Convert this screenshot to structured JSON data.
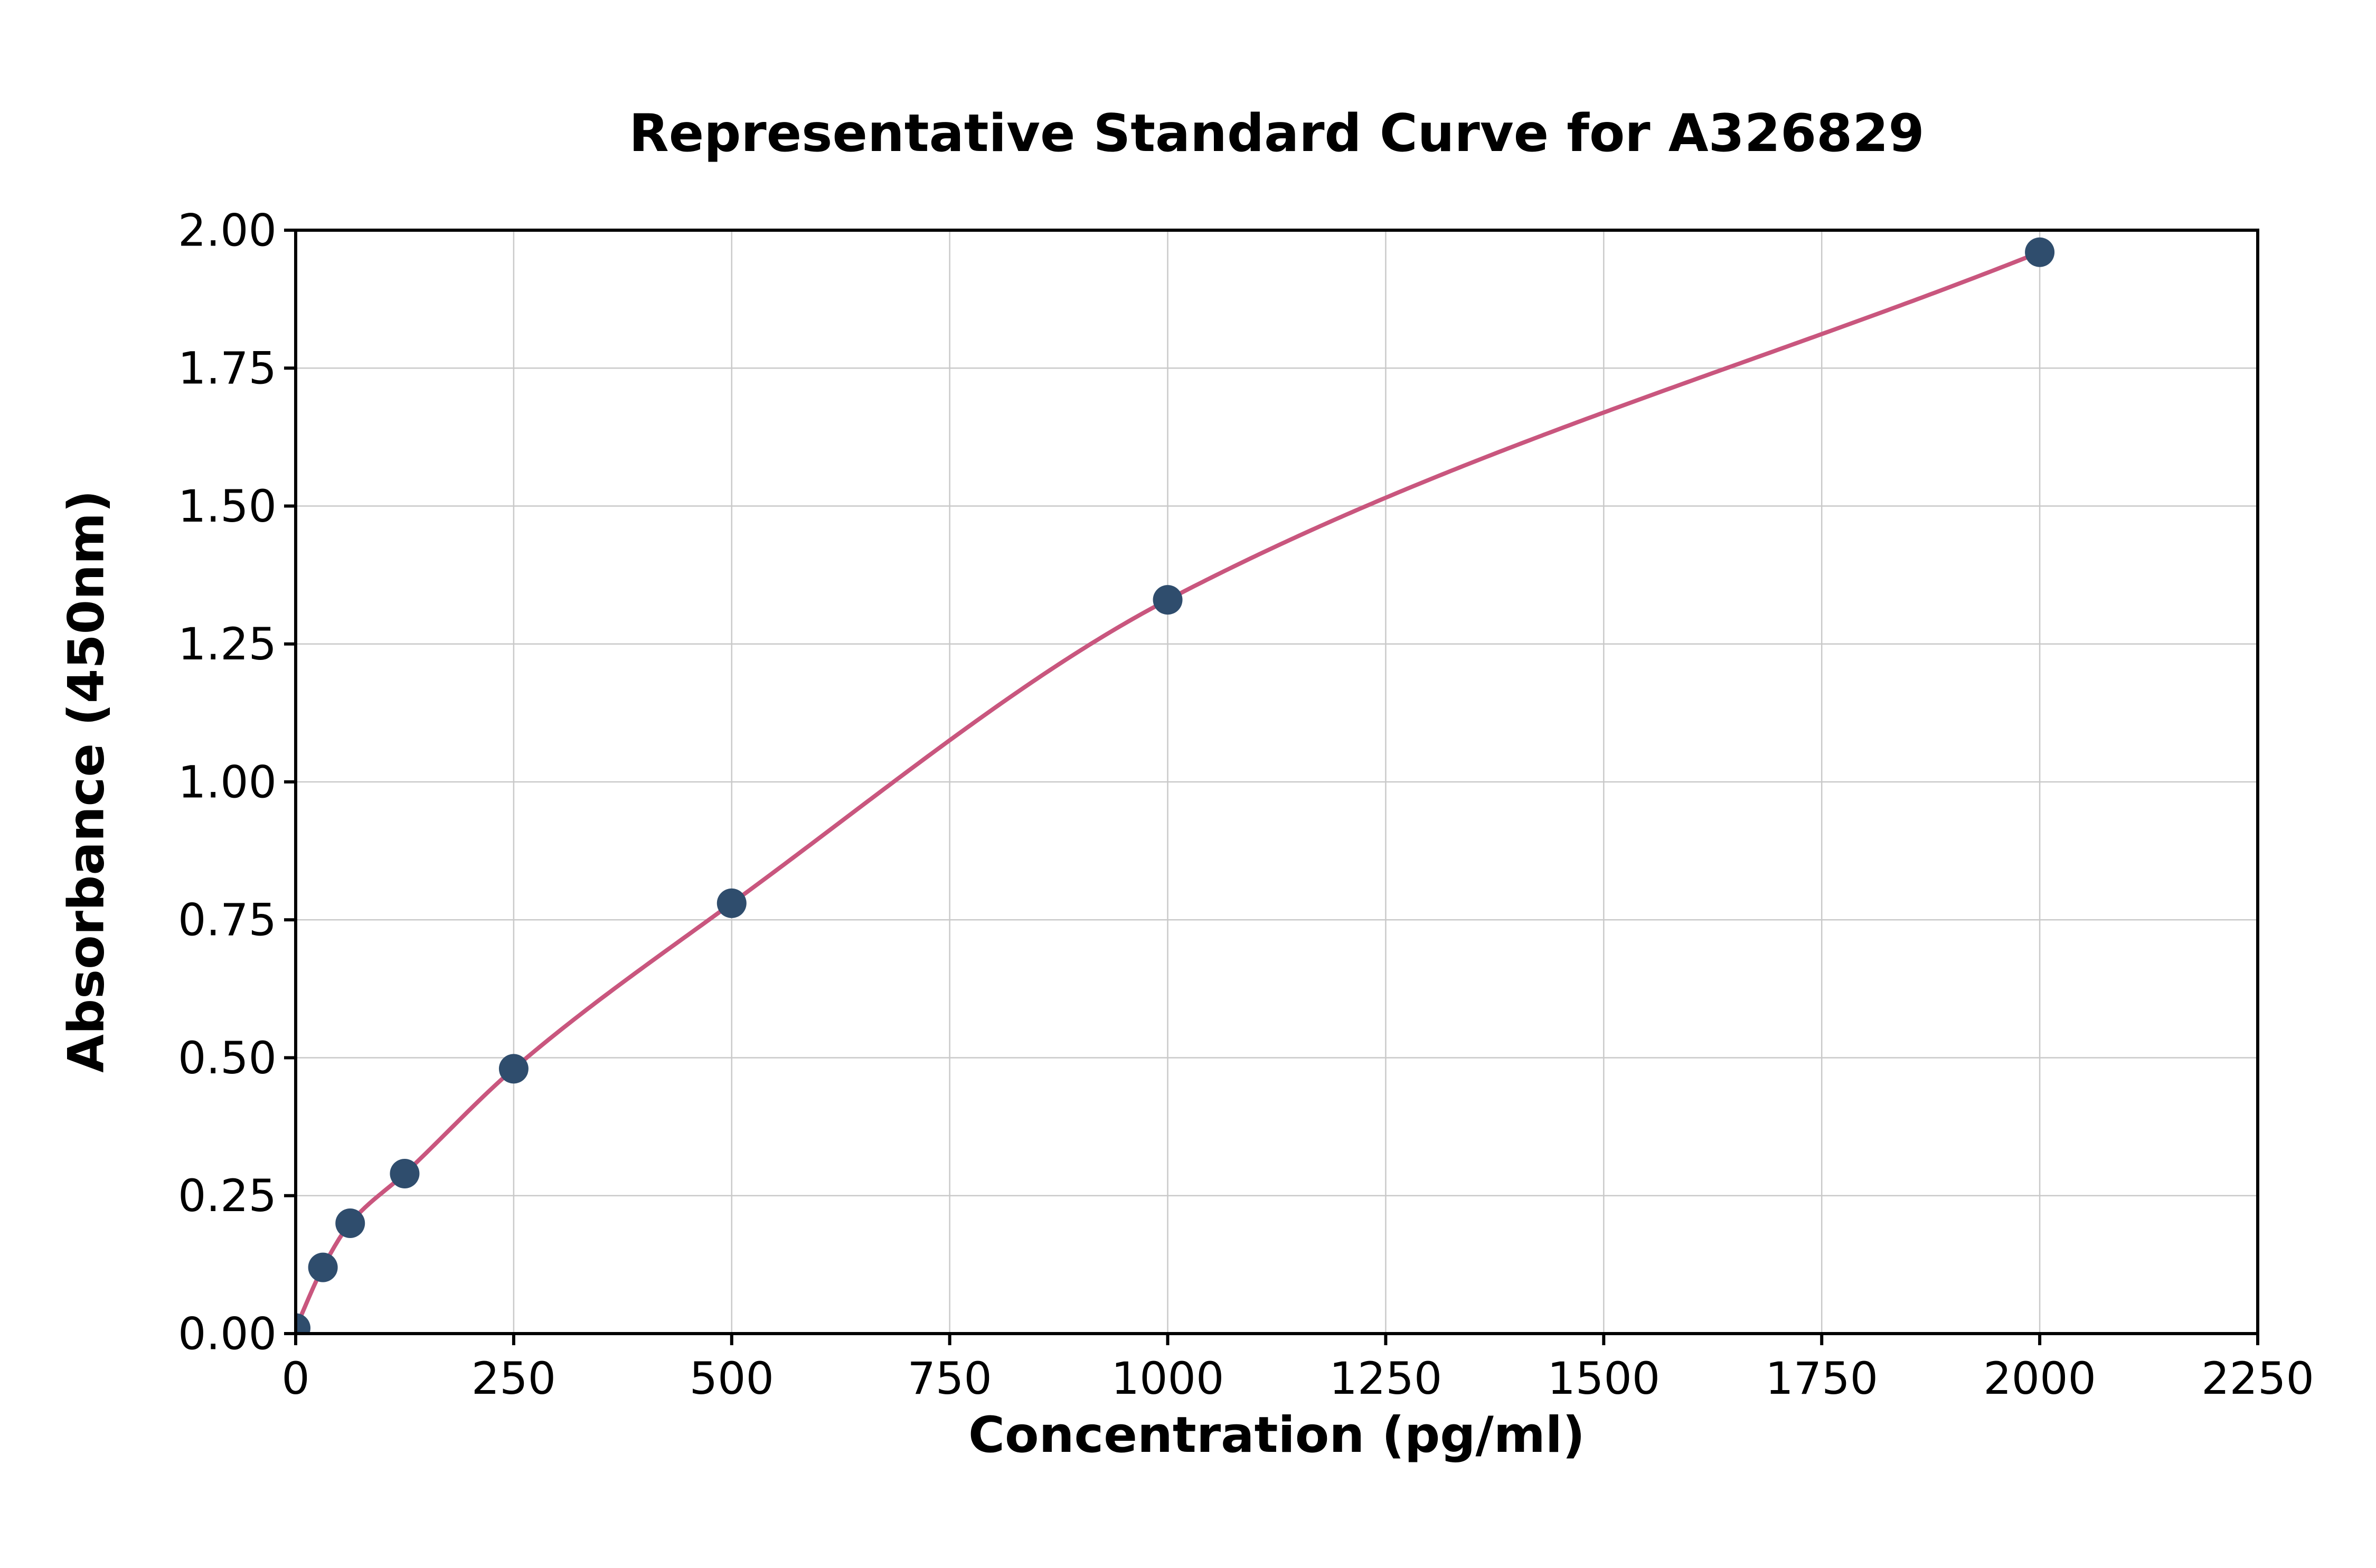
{
  "chart_data": {
    "type": "scatter",
    "title": "Representative Standard Curve for A326829",
    "xlabel": "Concentration (pg/ml)",
    "ylabel": "Absorbance (450nm)",
    "x": [
      0,
      31.25,
      62.5,
      125,
      250,
      500,
      1000,
      2000
    ],
    "y": [
      0.01,
      0.12,
      0.2,
      0.29,
      0.48,
      0.78,
      1.33,
      1.96
    ],
    "fit_curve": "smooth monotone curve through points",
    "xlim": [
      0,
      2250
    ],
    "ylim": [
      0,
      2.0
    ],
    "xticks": [
      0,
      250,
      500,
      750,
      1000,
      1250,
      1500,
      1750,
      2000,
      2250
    ],
    "xtick_labels": [
      "0",
      "250",
      "500",
      "750",
      "1000",
      "1250",
      "1500",
      "1750",
      "2000",
      "2250"
    ],
    "yticks": [
      0,
      0.25,
      0.5,
      0.75,
      1.0,
      1.25,
      1.5,
      1.75,
      2.0
    ],
    "ytick_labels": [
      "0.00",
      "0.25",
      "0.50",
      "0.75",
      "1.00",
      "1.25",
      "1.50",
      "1.75",
      "2.00"
    ],
    "grid": true,
    "legend_position": "none",
    "marker_color": "#2f4d6d",
    "line_color": "#c9567e",
    "grid_color": "#c9c9c9",
    "spine_color": "#000000",
    "background": "#ffffff"
  }
}
